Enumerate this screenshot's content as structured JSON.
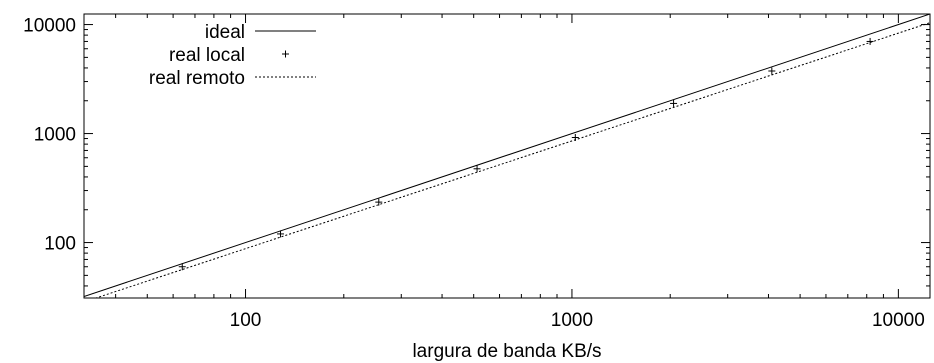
{
  "chart_data": {
    "type": "line",
    "title": "",
    "xlabel": "largura de banda KB/s",
    "ylabel": "",
    "xscale": "log",
    "yscale": "log",
    "xlim": [
      32,
      12500
    ],
    "ylim": [
      31,
      12500
    ],
    "x_ticks": [
      100,
      1000,
      10000
    ],
    "x_tick_labels": [
      "100",
      "1000",
      "10000"
    ],
    "y_ticks": [
      100,
      1000,
      10000
    ],
    "y_tick_labels": [
      "100",
      "1000",
      "10000"
    ],
    "grid": false,
    "legend_position": "top-left",
    "series": [
      {
        "name": "ideal",
        "style": "solid",
        "color": "#000000",
        "x": [
          32,
          12500
        ],
        "y": [
          32,
          12500
        ]
      },
      {
        "name": "real local",
        "style": "points",
        "marker": "plus",
        "color": "#000000",
        "x": [
          64,
          128,
          256,
          512,
          1024,
          2048,
          4096,
          8192
        ],
        "y": [
          60,
          120,
          235,
          475,
          920,
          1890,
          3750,
          7000
        ]
      },
      {
        "name": "real remoto",
        "style": "dotted",
        "color": "#000000",
        "x": [
          32,
          12500
        ],
        "y": [
          28.5,
          10400
        ]
      }
    ]
  }
}
